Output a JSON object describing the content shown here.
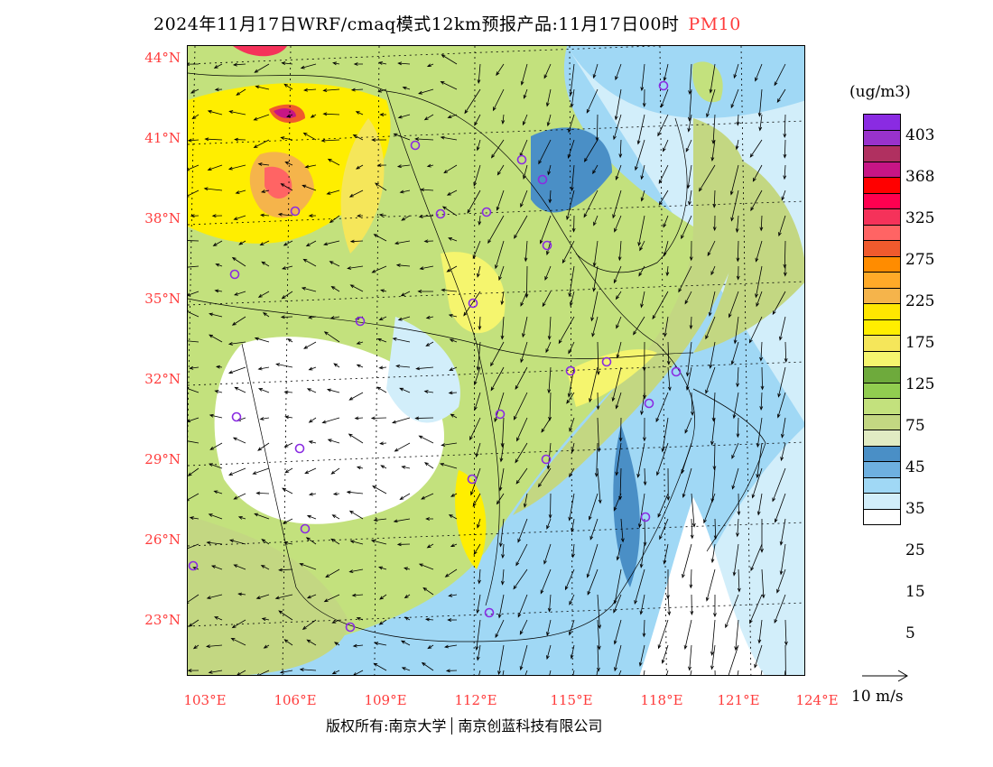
{
  "title": {
    "text": "2024年11月17日WRF/cmaq模式12km预报产品:11月17日00时",
    "pollutant": "PM10"
  },
  "axes": {
    "lat_labels": [
      "44°N",
      "41°N",
      "38°N",
      "35°N",
      "32°N",
      "29°N",
      "26°N",
      "23°N"
    ],
    "lon_labels": [
      "103°E",
      "106°E",
      "109°E",
      "112°E",
      "115°E",
      "118°E",
      "121°E",
      "124°E"
    ]
  },
  "legend": {
    "unit": "(ug/m3)",
    "colors": [
      "#8a2be2",
      "#9932cc",
      "#b03060",
      "#c71585",
      "#ff0000",
      "#ff0050",
      "#f5325a",
      "#ff6464",
      "#f05a2d",
      "#ff8c00",
      "#ffaa28",
      "#f5b44b",
      "#ffe600",
      "#ffee00",
      "#f5e65a",
      "#f5f56e",
      "#6eaa3c",
      "#91cd50",
      "#c3e17d",
      "#c3d782",
      "#e1ebc3",
      "#4a8fc6",
      "#6eb0e0",
      "#a0d8f5",
      "#d2eefa",
      "#ffffff"
    ],
    "labels": [
      "403",
      "368",
      "325",
      "275",
      "225",
      "175",
      "125",
      "75",
      "45",
      "35",
      "25",
      "15",
      "5"
    ]
  },
  "wind_reference": "10 m/s",
  "copyright": {
    "left": "版权所有:南京大学",
    "right": "南京创蓝科技有限公司"
  }
}
